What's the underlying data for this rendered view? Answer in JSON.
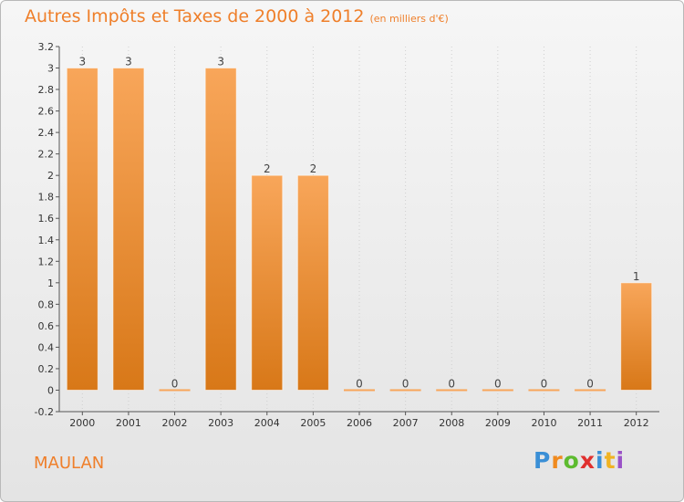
{
  "title": "Autres Impôts et Taxes de 2000 à 2012",
  "subtitle": "(en milliers d'€)",
  "place_name": "MAULAN",
  "logo_text": "Proxiti",
  "logo_colors": [
    "#3a8fd6",
    "#f08a1e",
    "#5dbb2f",
    "#e0302e",
    "#3a8fd6",
    "#f0b323",
    "#9a52c7"
  ],
  "chart_data": {
    "type": "bar",
    "title": "Autres Impôts et Taxes de 2000 à 2012",
    "subtitle": "(en milliers d'€)",
    "xlabel": "",
    "ylabel": "",
    "categories": [
      "2000",
      "2001",
      "2002",
      "2003",
      "2004",
      "2005",
      "2006",
      "2007",
      "2008",
      "2009",
      "2010",
      "2011",
      "2012"
    ],
    "values": [
      3,
      3,
      0,
      3,
      2,
      2,
      0,
      0,
      0,
      0,
      0,
      0,
      1
    ],
    "data_labels": [
      "3",
      "3",
      "0",
      "3",
      "2",
      "2",
      "0",
      "0",
      "0",
      "0",
      "0",
      "0",
      "1"
    ],
    "ylim": [
      -0.2,
      3.2
    ],
    "yticks": [
      -0.2,
      0,
      0.2,
      0.4,
      0.6,
      0.8,
      1,
      1.2,
      1.4,
      1.6,
      1.8,
      2,
      2.2,
      2.4,
      2.6,
      2.8,
      3,
      3.2
    ],
    "ytick_labels": [
      "-0.2",
      "0",
      "0.2",
      "0.4",
      "0.6",
      "0.8",
      "1",
      "1.2",
      "1.4",
      "1.6",
      "1.8",
      "2",
      "2.2",
      "2.4",
      "2.6",
      "2.8",
      "3",
      "3.2"
    ],
    "grid": false,
    "legend": "none",
    "bar_colors": {
      "top": "#f8a65a",
      "bottom": "#d87818"
    }
  }
}
